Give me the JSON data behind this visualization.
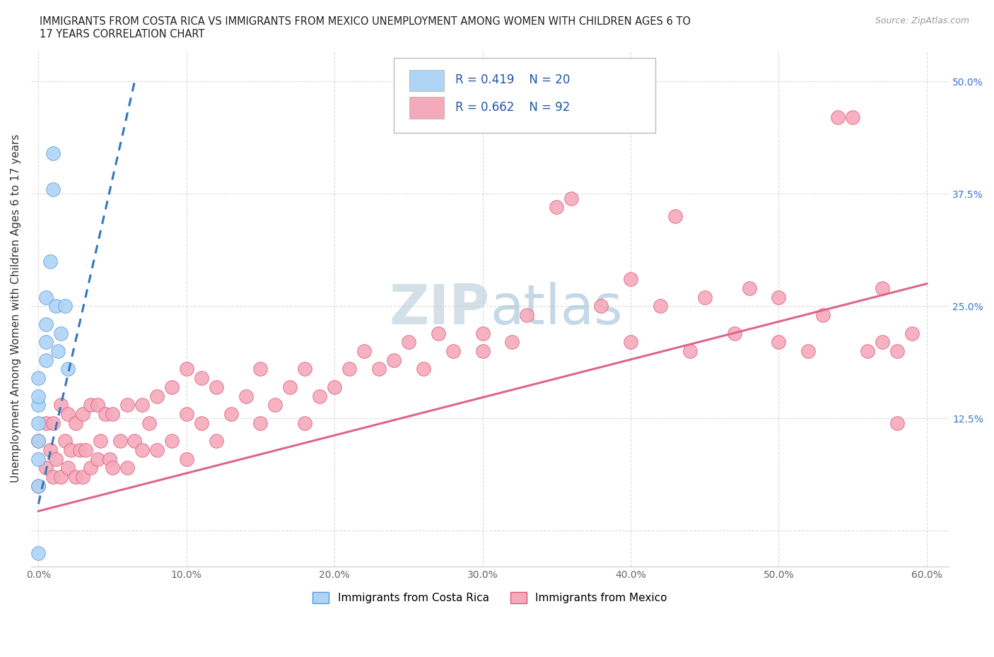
{
  "title_line1": "IMMIGRANTS FROM COSTA RICA VS IMMIGRANTS FROM MEXICO UNEMPLOYMENT AMONG WOMEN WITH CHILDREN AGES 6 TO",
  "title_line2": "17 YEARS CORRELATION CHART",
  "source_text": "Source: ZipAtlas.com",
  "ylabel": "Unemployment Among Women with Children Ages 6 to 17 years",
  "legend_bottom": [
    "Immigrants from Costa Rica",
    "Immigrants from Mexico"
  ],
  "r_costa_rica": 0.419,
  "n_costa_rica": 20,
  "r_mexico": 0.662,
  "n_mexico": 92,
  "xlim": [
    -0.005,
    0.615
  ],
  "ylim": [
    -0.04,
    0.535
  ],
  "xticks": [
    0.0,
    0.1,
    0.2,
    0.3,
    0.4,
    0.5,
    0.6
  ],
  "yticks": [
    0.0,
    0.125,
    0.25,
    0.375,
    0.5
  ],
  "color_costa_rica_fill": "#aed4f5",
  "color_costa_rica_edge": "#5599dd",
  "color_mexico_fill": "#f5aabb",
  "color_mexico_edge": "#dd5577",
  "color_line_costa_rica": "#3377bb",
  "color_line_mexico": "#dd6688",
  "background_color": "#ffffff",
  "watermark_color": "#d0e4f0",
  "cr_x": [
    0.0,
    0.0,
    0.0,
    0.0,
    0.0,
    0.0,
    0.0,
    0.005,
    0.005,
    0.005,
    0.005,
    0.008,
    0.01,
    0.01,
    0.012,
    0.013,
    0.015,
    0.018,
    0.02,
    0.0
  ],
  "cr_y": [
    0.05,
    0.08,
    0.1,
    0.12,
    0.14,
    0.15,
    0.17,
    0.19,
    0.21,
    0.23,
    0.26,
    0.3,
    0.38,
    0.42,
    0.25,
    0.2,
    0.22,
    0.25,
    0.18,
    -0.025
  ],
  "mx_x": [
    0.0,
    0.0,
    0.005,
    0.005,
    0.008,
    0.01,
    0.01,
    0.012,
    0.015,
    0.015,
    0.018,
    0.02,
    0.02,
    0.022,
    0.025,
    0.025,
    0.028,
    0.03,
    0.03,
    0.032,
    0.035,
    0.035,
    0.04,
    0.04,
    0.042,
    0.045,
    0.048,
    0.05,
    0.05,
    0.055,
    0.06,
    0.06,
    0.065,
    0.07,
    0.07,
    0.075,
    0.08,
    0.08,
    0.09,
    0.09,
    0.1,
    0.1,
    0.1,
    0.11,
    0.11,
    0.12,
    0.12,
    0.13,
    0.14,
    0.15,
    0.15,
    0.16,
    0.17,
    0.18,
    0.18,
    0.19,
    0.2,
    0.21,
    0.22,
    0.23,
    0.24,
    0.25,
    0.26,
    0.27,
    0.28,
    0.3,
    0.3,
    0.32,
    0.33,
    0.35,
    0.36,
    0.38,
    0.4,
    0.4,
    0.42,
    0.43,
    0.44,
    0.45,
    0.47,
    0.48,
    0.5,
    0.5,
    0.52,
    0.53,
    0.54,
    0.55,
    0.56,
    0.57,
    0.57,
    0.58,
    0.58,
    0.59
  ],
  "mx_y": [
    0.05,
    0.1,
    0.07,
    0.12,
    0.09,
    0.06,
    0.12,
    0.08,
    0.06,
    0.14,
    0.1,
    0.07,
    0.13,
    0.09,
    0.06,
    0.12,
    0.09,
    0.06,
    0.13,
    0.09,
    0.07,
    0.14,
    0.08,
    0.14,
    0.1,
    0.13,
    0.08,
    0.07,
    0.13,
    0.1,
    0.07,
    0.14,
    0.1,
    0.09,
    0.14,
    0.12,
    0.09,
    0.15,
    0.1,
    0.16,
    0.08,
    0.13,
    0.18,
    0.12,
    0.17,
    0.1,
    0.16,
    0.13,
    0.15,
    0.12,
    0.18,
    0.14,
    0.16,
    0.12,
    0.18,
    0.15,
    0.16,
    0.18,
    0.2,
    0.18,
    0.19,
    0.21,
    0.18,
    0.22,
    0.2,
    0.22,
    0.2,
    0.21,
    0.24,
    0.36,
    0.37,
    0.25,
    0.21,
    0.28,
    0.25,
    0.35,
    0.2,
    0.26,
    0.22,
    0.27,
    0.21,
    0.26,
    0.2,
    0.24,
    0.46,
    0.46,
    0.2,
    0.21,
    0.27,
    0.12,
    0.2,
    0.22
  ],
  "mx_line_x": [
    0.0,
    0.6
  ],
  "mx_line_y": [
    0.022,
    0.275
  ],
  "cr_line_x": [
    0.0,
    0.065
  ],
  "cr_line_y": [
    0.03,
    0.5
  ]
}
